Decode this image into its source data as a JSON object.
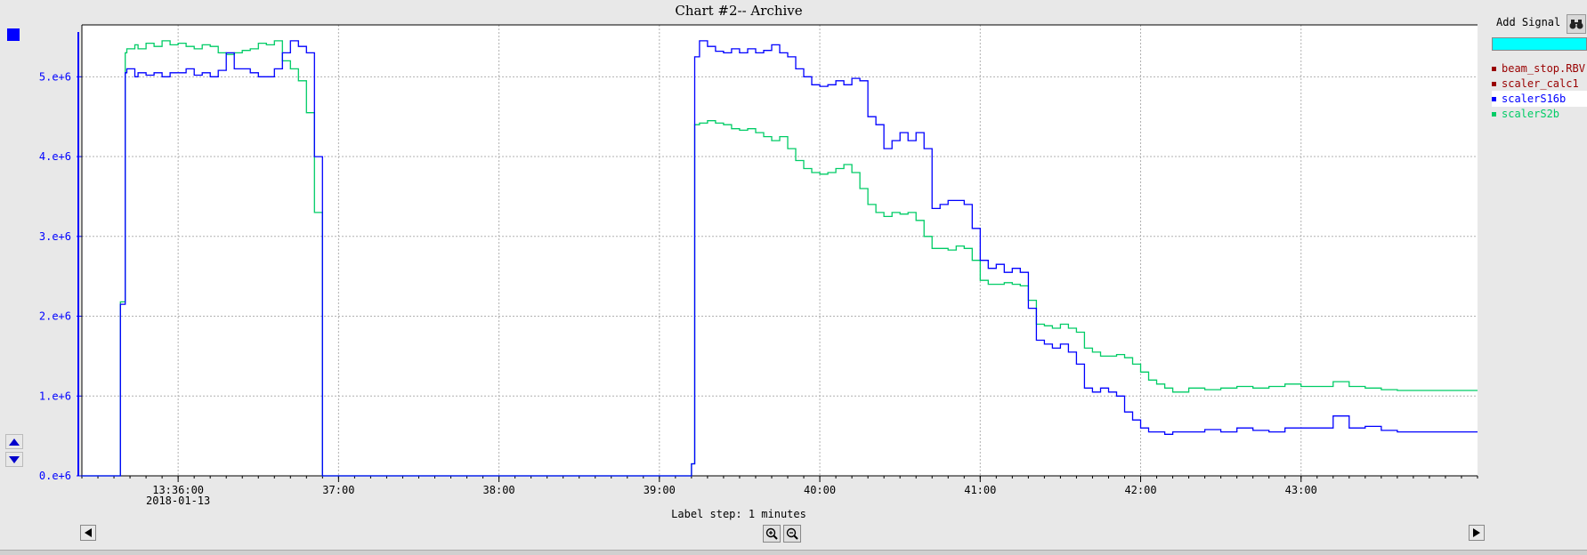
{
  "window": {
    "title": "Chart #2-- Archive"
  },
  "sidebar": {
    "add_signal_label": "Add Signal",
    "signals": [
      {
        "name": "beam_stop.RBV",
        "color": "#990000"
      },
      {
        "name": "scaler_calc1",
        "color": "#990000"
      },
      {
        "name": "scalerS16b",
        "color": "#0000ff"
      },
      {
        "name": "scalerS2b",
        "color": "#00cc66"
      }
    ]
  },
  "footer": {
    "label_step": "Label step: 1 minutes"
  },
  "chart_data": {
    "type": "line",
    "title": "Chart #2-- Archive",
    "xlabel": "",
    "ylabel": "",
    "x_unit": "minutes after 13:35:00 on 2018-01-13",
    "xlim": [
      -0.6,
      8.1
    ],
    "ylim": [
      0,
      5.65
    ],
    "y_unit": "x1e6",
    "y_ticks": [
      0,
      1,
      2,
      3,
      4,
      5
    ],
    "y_tick_labels": [
      "0.e+6",
      "1.e+6",
      "2.e+6",
      "3.e+6",
      "4.e+6",
      "5.e+6"
    ],
    "x_ticks": [
      0.0,
      1.0,
      2.0,
      3.0,
      4.0,
      5.0,
      6.0,
      7.0
    ],
    "x_tick_labels": [
      "13:36:00",
      "37:00",
      "38:00",
      "39:00",
      "40:00",
      "41:00",
      "42:00",
      "43:00"
    ],
    "x_sublabel": {
      "under": "13:36:00",
      "text": "2018-01-13"
    },
    "grid": true,
    "legend": "right",
    "series": [
      {
        "name": "scalerS16b",
        "color": "#0000ff",
        "x": [
          -0.6,
          -0.36,
          -0.33,
          -0.32,
          -0.27,
          -0.25,
          -0.2,
          -0.15,
          -0.1,
          -0.05,
          0.0,
          0.05,
          0.1,
          0.15,
          0.2,
          0.25,
          0.3,
          0.35,
          0.4,
          0.45,
          0.5,
          0.55,
          0.6,
          0.65,
          0.7,
          0.75,
          0.8,
          0.85,
          0.9,
          0.95,
          1.0,
          1.02,
          1.1,
          1.2,
          1.4,
          1.6,
          1.8,
          2.0,
          2.2,
          2.4,
          2.6,
          2.8,
          3.0,
          3.2,
          3.22,
          3.25,
          3.3,
          3.35,
          3.4,
          3.45,
          3.5,
          3.55,
          3.6,
          3.65,
          3.7,
          3.75,
          3.8,
          3.85,
          3.9,
          3.95,
          4.0,
          4.05,
          4.1,
          4.15,
          4.2,
          4.25,
          4.3,
          4.35,
          4.4,
          4.45,
          4.5,
          4.55,
          4.6,
          4.65,
          4.7,
          4.75,
          4.8,
          4.85,
          4.9,
          4.95,
          5.0,
          5.05,
          5.1,
          5.15,
          5.2,
          5.25,
          5.3,
          5.35,
          5.4,
          5.45,
          5.5,
          5.55,
          5.6,
          5.65,
          5.7,
          5.75,
          5.8,
          5.85,
          5.9,
          5.95,
          6.0,
          6.05,
          6.1,
          6.15,
          6.2,
          6.3,
          6.4,
          6.5,
          6.6,
          6.7,
          6.8,
          6.9,
          7.0,
          7.1,
          7.2,
          7.3,
          7.4,
          7.5,
          7.6
        ],
        "y": [
          0.0,
          2.15,
          5.05,
          5.1,
          5.0,
          5.05,
          5.02,
          5.05,
          5.0,
          5.05,
          5.05,
          5.1,
          5.02,
          5.05,
          5.0,
          5.08,
          5.3,
          5.1,
          5.1,
          5.05,
          5.0,
          5.0,
          5.1,
          5.3,
          5.45,
          5.38,
          5.3,
          4.0,
          0.0,
          0.0,
          0.0,
          0.0,
          0.0,
          0.0,
          0.0,
          0.0,
          0.0,
          0.0,
          0.0,
          0.0,
          0.0,
          0.0,
          0.0,
          0.15,
          5.25,
          5.45,
          5.38,
          5.32,
          5.3,
          5.35,
          5.3,
          5.35,
          5.3,
          5.33,
          5.4,
          5.3,
          5.25,
          5.1,
          5.0,
          4.9,
          4.88,
          4.9,
          4.95,
          4.9,
          4.98,
          4.95,
          4.5,
          4.4,
          4.1,
          4.2,
          4.3,
          4.2,
          4.3,
          4.1,
          3.35,
          3.4,
          3.45,
          3.45,
          3.4,
          3.1,
          2.7,
          2.6,
          2.65,
          2.55,
          2.6,
          2.55,
          2.1,
          1.7,
          1.65,
          1.6,
          1.65,
          1.55,
          1.4,
          1.1,
          1.05,
          1.1,
          1.05,
          1.0,
          0.8,
          0.7,
          0.6,
          0.55,
          0.55,
          0.52,
          0.55,
          0.55,
          0.58,
          0.55,
          0.6,
          0.57,
          0.55,
          0.6,
          0.6,
          0.6,
          0.75,
          0.6,
          0.62,
          0.57,
          0.55
        ]
      },
      {
        "name": "scalerS2b",
        "color": "#00cc66",
        "x": [
          -0.6,
          -0.36,
          -0.33,
          -0.32,
          -0.27,
          -0.25,
          -0.2,
          -0.15,
          -0.1,
          -0.05,
          0.0,
          0.05,
          0.1,
          0.15,
          0.2,
          0.25,
          0.3,
          0.35,
          0.4,
          0.45,
          0.5,
          0.55,
          0.6,
          0.65,
          0.7,
          0.75,
          0.8,
          0.85,
          0.9,
          0.95,
          1.0,
          1.02,
          1.1,
          1.2,
          1.4,
          1.6,
          1.8,
          2.0,
          2.2,
          2.4,
          2.6,
          2.8,
          3.0,
          3.2,
          3.22,
          3.25,
          3.3,
          3.35,
          3.4,
          3.45,
          3.5,
          3.55,
          3.6,
          3.65,
          3.7,
          3.75,
          3.8,
          3.85,
          3.9,
          3.95,
          4.0,
          4.05,
          4.1,
          4.15,
          4.2,
          4.25,
          4.3,
          4.35,
          4.4,
          4.45,
          4.5,
          4.55,
          4.6,
          4.65,
          4.7,
          4.75,
          4.8,
          4.85,
          4.9,
          4.95,
          5.0,
          5.05,
          5.1,
          5.15,
          5.2,
          5.25,
          5.3,
          5.35,
          5.4,
          5.45,
          5.5,
          5.55,
          5.6,
          5.65,
          5.7,
          5.75,
          5.8,
          5.85,
          5.9,
          5.95,
          6.0,
          6.05,
          6.1,
          6.15,
          6.2,
          6.3,
          6.4,
          6.5,
          6.6,
          6.7,
          6.8,
          6.9,
          7.0,
          7.1,
          7.2,
          7.3,
          7.4,
          7.5,
          7.6
        ],
        "y": [
          0.0,
          2.18,
          5.3,
          5.35,
          5.4,
          5.35,
          5.42,
          5.38,
          5.45,
          5.4,
          5.42,
          5.38,
          5.35,
          5.4,
          5.38,
          5.3,
          5.28,
          5.3,
          5.33,
          5.35,
          5.42,
          5.4,
          5.45,
          5.2,
          5.1,
          4.95,
          4.55,
          3.3,
          0.0,
          0.0,
          0.0,
          0.0,
          0.0,
          0.0,
          0.0,
          0.0,
          0.0,
          0.0,
          0.0,
          0.0,
          0.0,
          0.0,
          0.0,
          0.15,
          4.4,
          4.42,
          4.45,
          4.42,
          4.4,
          4.35,
          4.33,
          4.35,
          4.3,
          4.25,
          4.2,
          4.25,
          4.1,
          3.95,
          3.85,
          3.8,
          3.78,
          3.8,
          3.85,
          3.9,
          3.8,
          3.6,
          3.4,
          3.3,
          3.25,
          3.3,
          3.28,
          3.3,
          3.2,
          3.0,
          2.85,
          2.85,
          2.83,
          2.88,
          2.85,
          2.7,
          2.45,
          2.4,
          2.4,
          2.42,
          2.4,
          2.38,
          2.2,
          1.9,
          1.88,
          1.85,
          1.9,
          1.85,
          1.8,
          1.6,
          1.55,
          1.5,
          1.5,
          1.52,
          1.48,
          1.4,
          1.3,
          1.2,
          1.15,
          1.1,
          1.05,
          1.1,
          1.08,
          1.1,
          1.12,
          1.1,
          1.12,
          1.15,
          1.12,
          1.12,
          1.18,
          1.12,
          1.1,
          1.08,
          1.07
        ]
      }
    ]
  }
}
